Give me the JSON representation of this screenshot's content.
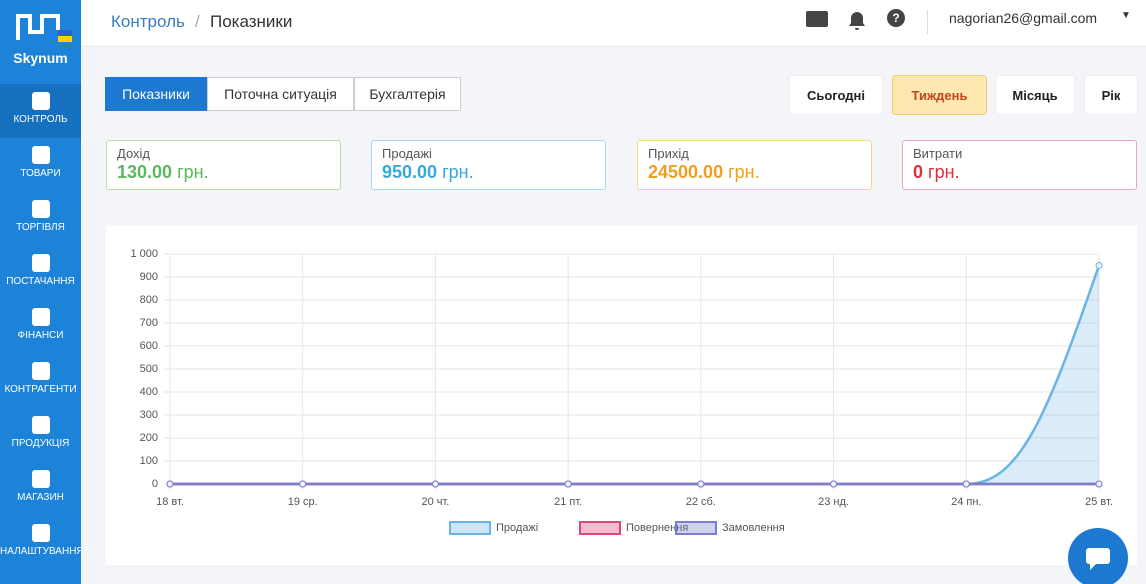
{
  "sidebar": {
    "logo": "Skynum",
    "items": [
      "КОНТРОЛЬ",
      "ТОВАРИ",
      "ТОРГІВЛЯ",
      "ПОСТАЧАННЯ",
      "ФІНАНСИ",
      "КОНТРАГЕНТИ",
      "ПРОДУКЦІЯ",
      "МАГАЗИН",
      "НАЛАШТУВАННЯ"
    ]
  },
  "header": {
    "breadcrumb": "Контроль",
    "page": "Показники",
    "user": "nagorian26@gmail.com"
  },
  "tabs": [
    "Показники",
    "Поточна ситуація",
    "Бухгалтерія"
  ],
  "periods": [
    "Сьогодні",
    "Тиждень",
    "Місяць",
    "Рік"
  ],
  "cards": [
    {
      "label": "Дохід",
      "value": "130.00",
      "unit": "грн.",
      "color": "#5cb85c"
    },
    {
      "label": "Продажі",
      "value": "950.00",
      "unit": "грн.",
      "color": "#36a9d8"
    },
    {
      "label": "Прихід",
      "value": "24500.00",
      "unit": "грн.",
      "color": "#f0a01e"
    },
    {
      "label": "Витрати",
      "value": "0",
      "unit": "грн.",
      "color": "#e0303a"
    }
  ],
  "chart_data": {
    "type": "line",
    "categories": [
      "18 вт.",
      "19 ср.",
      "20 чт.",
      "21 пт.",
      "22 сб.",
      "23 нд.",
      "24 пн.",
      "25 вт."
    ],
    "series": [
      {
        "name": "Продажі",
        "color": "#6ab4e4",
        "values": [
          0,
          0,
          0,
          0,
          0,
          0,
          0,
          950
        ]
      },
      {
        "name": "Повернення",
        "color": "#e0457b",
        "values": [
          0,
          0,
          0,
          0,
          0,
          0,
          0,
          0
        ]
      },
      {
        "name": "Замовлення",
        "color": "#7b7fcc",
        "values": [
          0,
          0,
          0,
          0,
          0,
          0,
          0,
          0
        ]
      }
    ],
    "ylim": [
      0,
      1000
    ],
    "yticks": [
      0,
      100,
      200,
      300,
      400,
      500,
      600,
      700,
      800,
      900,
      {
        "value": 1000,
        "label": "1 000"
      }
    ],
    "grid": true
  }
}
